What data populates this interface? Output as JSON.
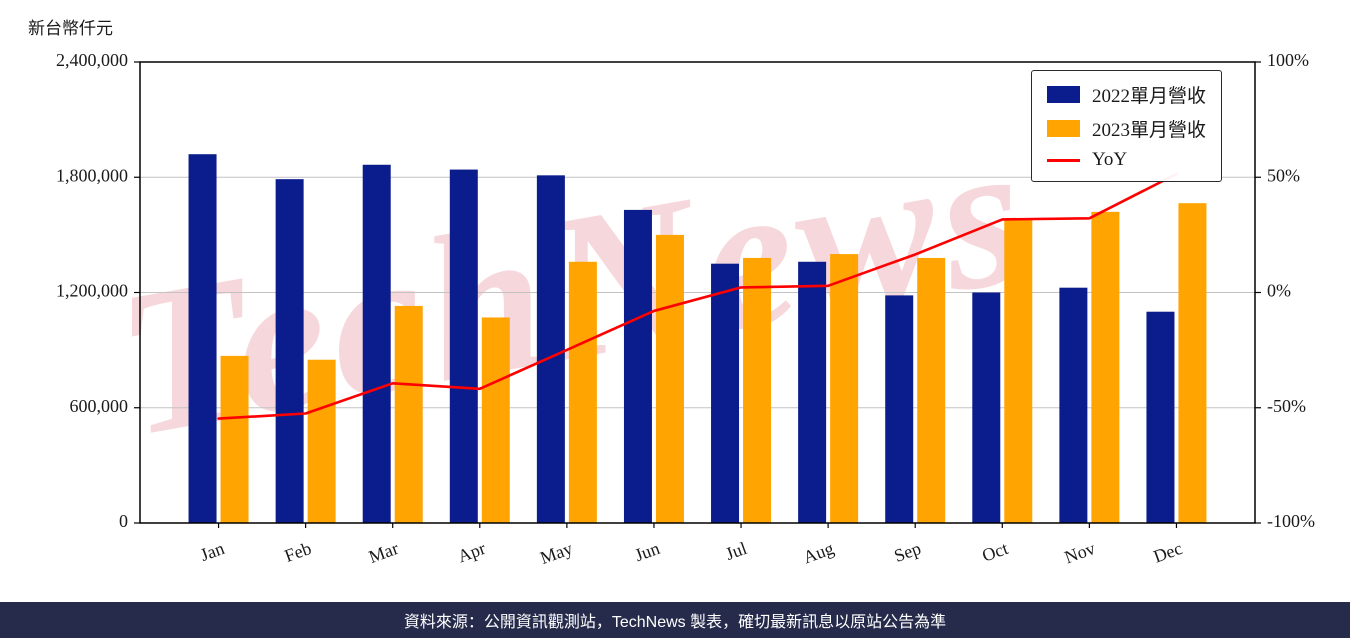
{
  "unit_label": "新台幣仟元",
  "watermark": "TechNews",
  "footer": {
    "text": "資料來源：公開資訊觀測站，TechNews 製表，確切最新訊息以原站公告為準"
  },
  "colors": {
    "bar_2022": "#0B1D8C",
    "bar_2023": "#FFA400",
    "yoy_line": "#FF0000",
    "grid": "#C3C3C3",
    "axis": "#000000",
    "tick_text": "#1A1A1A",
    "footer_bg": "#262B4B",
    "footer_text": "#FFFFFF",
    "watermark_pink": "rgba(205,40,60,0.18)"
  },
  "legend": {
    "items": [
      {
        "label": "2022單月營收",
        "color_key": "bar_2022",
        "swatch": "rect"
      },
      {
        "label": "2023單月營收",
        "color_key": "bar_2023",
        "swatch": "rect"
      },
      {
        "label": "YoY",
        "color_key": "yoy_line",
        "swatch": "line"
      }
    ]
  },
  "chart_data": {
    "type": "bar",
    "title": "",
    "categories": [
      "Jan",
      "Feb",
      "Mar",
      "Apr",
      "May",
      "Jun",
      "Jul",
      "Aug",
      "Sep",
      "Oct",
      "Nov",
      "Dec"
    ],
    "series": [
      {
        "name": "2022單月營收",
        "type": "bar",
        "axis": "left",
        "color_key": "bar_2022",
        "values": [
          1920000,
          1790000,
          1865000,
          1840000,
          1810000,
          1630000,
          1350000,
          1360000,
          1185000,
          1200000,
          1225000,
          1100000
        ]
      },
      {
        "name": "2023單月營收",
        "type": "bar",
        "axis": "left",
        "color_key": "bar_2023",
        "values": [
          870000,
          850000,
          1130000,
          1070000,
          1360000,
          1500000,
          1380000,
          1400000,
          1380000,
          1580000,
          1620000,
          1665000
        ]
      },
      {
        "name": "YoY",
        "type": "line",
        "axis": "right",
        "color_key": "yoy_line",
        "unit": "%",
        "values": [
          -54.7,
          -52.5,
          -39.4,
          -41.8,
          -24.9,
          -8.0,
          2.2,
          2.9,
          16.5,
          31.7,
          32.2,
          51.4
        ]
      }
    ],
    "left_axis": {
      "unit": "新台幣仟元",
      "range": [
        0,
        2400000
      ],
      "ticks": [
        0,
        600000,
        1200000,
        1800000,
        2400000
      ],
      "tick_labels": [
        "0",
        "600,000",
        "1,200,000",
        "1,800,000",
        "2,400,000"
      ]
    },
    "right_axis": {
      "unit": "%",
      "range": [
        -100,
        100
      ],
      "ticks": [
        -100,
        -50,
        0,
        50,
        100
      ],
      "tick_labels": [
        "-100%",
        "-50%",
        "0%",
        "50%",
        "100%"
      ]
    },
    "grid": true,
    "legend_position": "top-right",
    "x_tick_rotation": -20
  }
}
